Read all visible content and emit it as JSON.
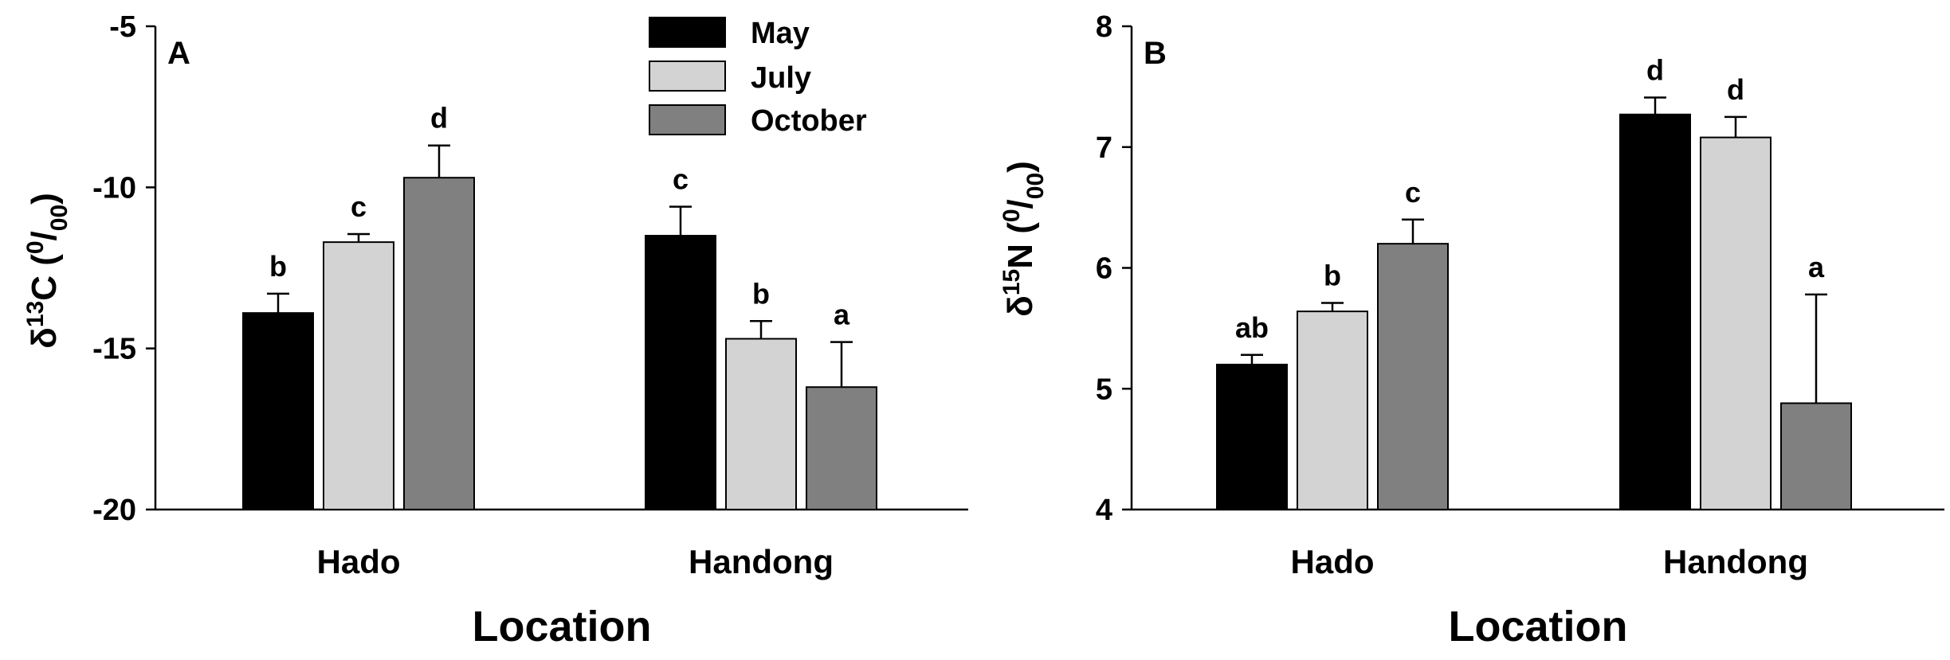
{
  "colors": {
    "May": "#000000",
    "July": "#d3d3d3",
    "October": "#808080"
  },
  "legend": [
    "May",
    "July",
    "October"
  ],
  "chart_data": [
    {
      "type": "bar",
      "panel": "A",
      "categories": [
        "Hado",
        "Handong"
      ],
      "xlabel": "Location",
      "ylabel_parts": [
        "δ",
        "13",
        "C (",
        "0",
        "/",
        "00",
        ")"
      ],
      "ylim": [
        -20,
        -5
      ],
      "yticks": [
        "-20",
        "-15",
        "-10",
        "-5"
      ],
      "series": [
        {
          "name": "May",
          "values": [
            -13.9,
            -11.5
          ],
          "errors": [
            0.6,
            0.9
          ],
          "labels": [
            "b",
            "c"
          ]
        },
        {
          "name": "July",
          "values": [
            -11.7,
            -14.7
          ],
          "errors": [
            0.25,
            0.55
          ],
          "labels": [
            "c",
            "b"
          ]
        },
        {
          "name": "October",
          "values": [
            -9.7,
            -16.2
          ],
          "errors": [
            1.0,
            1.4
          ],
          "labels": [
            "d",
            "a"
          ]
        }
      ]
    },
    {
      "type": "bar",
      "panel": "B",
      "categories": [
        "Hado",
        "Handong"
      ],
      "xlabel": "Location",
      "ylabel_parts": [
        "δ",
        "15",
        "N (",
        "0",
        "/",
        "00",
        ")"
      ],
      "ylim": [
        4,
        8
      ],
      "yticks": [
        "4",
        "5",
        "6",
        "7",
        "8"
      ],
      "series": [
        {
          "name": "May",
          "values": [
            5.2,
            7.27
          ],
          "errors": [
            0.08,
            0.14
          ],
          "labels": [
            "ab",
            "d"
          ]
        },
        {
          "name": "July",
          "values": [
            5.64,
            7.08
          ],
          "errors": [
            0.07,
            0.17
          ],
          "labels": [
            "b",
            "d"
          ]
        },
        {
          "name": "October",
          "values": [
            6.2,
            4.88
          ],
          "errors": [
            0.2,
            0.9
          ],
          "labels": [
            "c",
            "a"
          ]
        }
      ]
    }
  ]
}
